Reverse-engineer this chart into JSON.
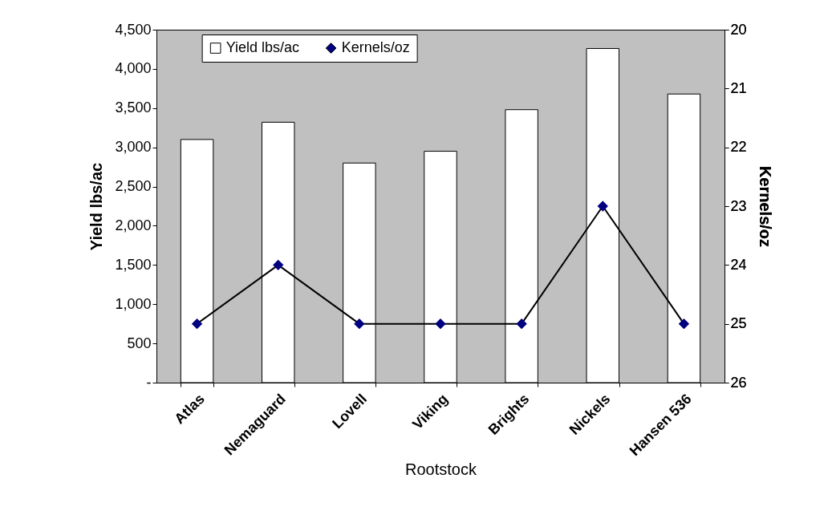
{
  "chart_data": {
    "type": "bar",
    "categories": [
      "Atlas",
      "Nemaguard",
      "Lovell",
      "Viking",
      "Brights",
      "Nickels",
      "Hansen 536"
    ],
    "series": [
      {
        "name": "Yield lbs/ac",
        "color": "#ffffff",
        "values": [
          3100,
          3320,
          2800,
          2950,
          3480,
          4260,
          3680
        ]
      },
      {
        "name": "Kernels/oz",
        "type": "line",
        "axis": "y2",
        "color": "#000080",
        "values": [
          25,
          24,
          25,
          25,
          25,
          23,
          25
        ]
      }
    ],
    "xlabel": "Rootstock",
    "ylabel": "Yield lbs/ac",
    "y2label": "Kernels/oz",
    "ylim": [
      0,
      4500
    ],
    "yticks": [
      {
        "value": 0,
        "label": "-"
      },
      500,
      {
        "value": 1000,
        "label": "1,000"
      },
      {
        "value": 1500,
        "label": "1,500"
      },
      {
        "value": 2000,
        "label": "2,000"
      },
      {
        "value": 2500,
        "label": "2,500"
      },
      {
        "value": 3000,
        "label": "3,000"
      },
      {
        "value": 3500,
        "label": "3,500"
      },
      {
        "value": 4000,
        "label": "4,000"
      },
      {
        "value": 4500,
        "label": "4,500"
      }
    ],
    "y2lim": [
      26,
      20
    ],
    "y2ticks": [
      20,
      21,
      22,
      23,
      24,
      25,
      26
    ],
    "legend": "top",
    "marker": "diamond",
    "grid": false
  }
}
